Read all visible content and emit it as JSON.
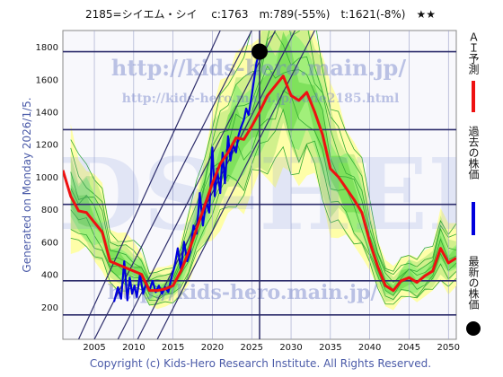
{
  "header": {
    "title": "2185=シイエム・シイ　 c:1763　m:789(-55%)　t:1621(-8%)　★★"
  },
  "watermarks": {
    "url_top": "http://kids-hero.main.jp/",
    "url_mid": "http://kids-hero.main.jp/code2185.html",
    "url_bottom": "http://kids-hero.main.jp/",
    "logo": "KIDS-HERO"
  },
  "left_caption": "Generated on Monday 2026/1/5.",
  "footer": "Copyright (c) Kids-Hero Research Institute. All Rights Reserved.",
  "legend": {
    "ai": "ＡＩ予測",
    "past": "過去の株価",
    "latest": "最新の株価"
  },
  "colors": {
    "ai": "#ee1111",
    "past": "#0000dd",
    "latest": "#000000",
    "grid": "#2d2d6b",
    "band_outer": "#ffff99",
    "band_inner": "#99ee77",
    "band_line": "#33aa33"
  },
  "chart_data": {
    "type": "line",
    "x_ticks": [
      2005,
      2010,
      2015,
      2020,
      2025,
      2030,
      2035,
      2040,
      2045,
      2050
    ],
    "y_ticks": [
      200,
      400,
      600,
      800,
      1000,
      1200,
      1400,
      1600,
      1800
    ],
    "xlim": [
      2001,
      2051
    ],
    "ylim": [
      0,
      1900
    ],
    "hlines": [
      1770,
      1290,
      830,
      360,
      150
    ],
    "vline": 2026,
    "latest_point": {
      "x": 2026,
      "y": 1770
    },
    "series": [
      {
        "name": "過去の株価",
        "color": "#0000dd",
        "x": [
          2007.5,
          2008.0,
          2008.4,
          2008.8,
          2009.2,
          2009.5,
          2009.8,
          2010.1,
          2010.4,
          2010.8,
          2011.2,
          2011.6,
          2012.0,
          2012.4,
          2012.8,
          2013.2,
          2013.6,
          2014.0,
          2014.4,
          2014.8,
          2015.2,
          2015.6,
          2016.0,
          2016.4,
          2016.8,
          2017.2,
          2017.6,
          2018.0,
          2018.4,
          2018.8,
          2019.2,
          2019.6,
          2020.0,
          2020.3,
          2020.6,
          2021.0,
          2021.3,
          2021.6,
          2022.0,
          2022.3,
          2022.6,
          2023.0,
          2023.3,
          2023.6,
          2024.0,
          2024.3,
          2024.6,
          2025.0,
          2025.3,
          2025.6,
          2026.0
        ],
        "y": [
          230,
          320,
          250,
          480,
          240,
          380,
          280,
          330,
          260,
          400,
          280,
          350,
          300,
          360,
          290,
          330,
          280,
          320,
          290,
          380,
          450,
          560,
          430,
          600,
          480,
          540,
          700,
          650,
          900,
          700,
          850,
          780,
          1180,
          880,
          1050,
          900,
          1150,
          960,
          1250,
          1100,
          1200,
          1150,
          1250,
          1300,
          1350,
          1420,
          1380,
          1500,
          1600,
          1700,
          1770
        ]
      },
      {
        "name": "ＡＩ予測",
        "color": "#ee1111",
        "x": [
          2001.0,
          2002.0,
          2003.0,
          2004.0,
          2005.0,
          2006.0,
          2007.0,
          2008.0,
          2009.0,
          2010.0,
          2011.0,
          2012.0,
          2013.0,
          2014.0,
          2015.0,
          2016.0,
          2017.0,
          2018.0,
          2019.0,
          2020.0,
          2021.0,
          2022.0,
          2023.0,
          2024.0,
          2025.0,
          2026.0,
          2027.0,
          2028.0,
          2029.0,
          2030.0,
          2031.0,
          2032.0,
          2033.0,
          2034.0,
          2035.0,
          2036.0,
          2037.0,
          2038.0,
          2039.0,
          2040.0,
          2041.0,
          2042.0,
          2043.0,
          2044.0,
          2045.0,
          2046.0,
          2047.0,
          2048.0,
          2049.0,
          2050.0,
          2051.0
        ],
        "y": [
          1040,
          880,
          790,
          780,
          720,
          660,
          480,
          460,
          440,
          420,
          400,
          300,
          300,
          310,
          330,
          420,
          540,
          680,
          820,
          960,
          1080,
          1150,
          1240,
          1230,
          1310,
          1400,
          1500,
          1560,
          1620,
          1500,
          1470,
          1520,
          1400,
          1260,
          1050,
          1000,
          930,
          860,
          780,
          600,
          450,
          330,
          300,
          360,
          380,
          350,
          390,
          420,
          560,
          470,
          500
        ]
      }
    ]
  }
}
